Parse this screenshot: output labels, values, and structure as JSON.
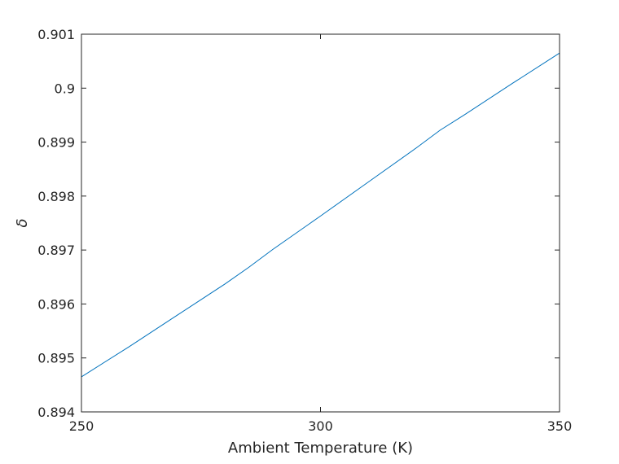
{
  "chart_data": {
    "type": "line",
    "title": "",
    "xlabel": "Ambient Temperature (K)",
    "ylabel": "δ",
    "xlim": [
      250,
      350
    ],
    "ylim": [
      0.894,
      0.901
    ],
    "xticks": [
      250,
      300,
      350
    ],
    "xtick_labels": [
      "250",
      "300",
      "350"
    ],
    "yticks": [
      0.894,
      0.895,
      0.896,
      0.897,
      0.898,
      0.899,
      0.9,
      0.901
    ],
    "ytick_labels": [
      "0.894",
      "0.895",
      "0.896",
      "0.897",
      "0.898",
      "0.899",
      "0.9",
      "0.901"
    ],
    "grid": false,
    "series": [
      {
        "color": "#0072bd",
        "x": [
          250,
          260,
          270,
          280,
          285,
          290,
          300,
          310,
          320,
          325,
          330,
          340,
          350
        ],
        "y": [
          0.89465,
          0.89521,
          0.89579,
          0.89637,
          0.89668,
          0.89701,
          0.89763,
          0.89826,
          0.89889,
          0.89922,
          0.8995,
          0.90008,
          0.90065
        ]
      }
    ]
  }
}
